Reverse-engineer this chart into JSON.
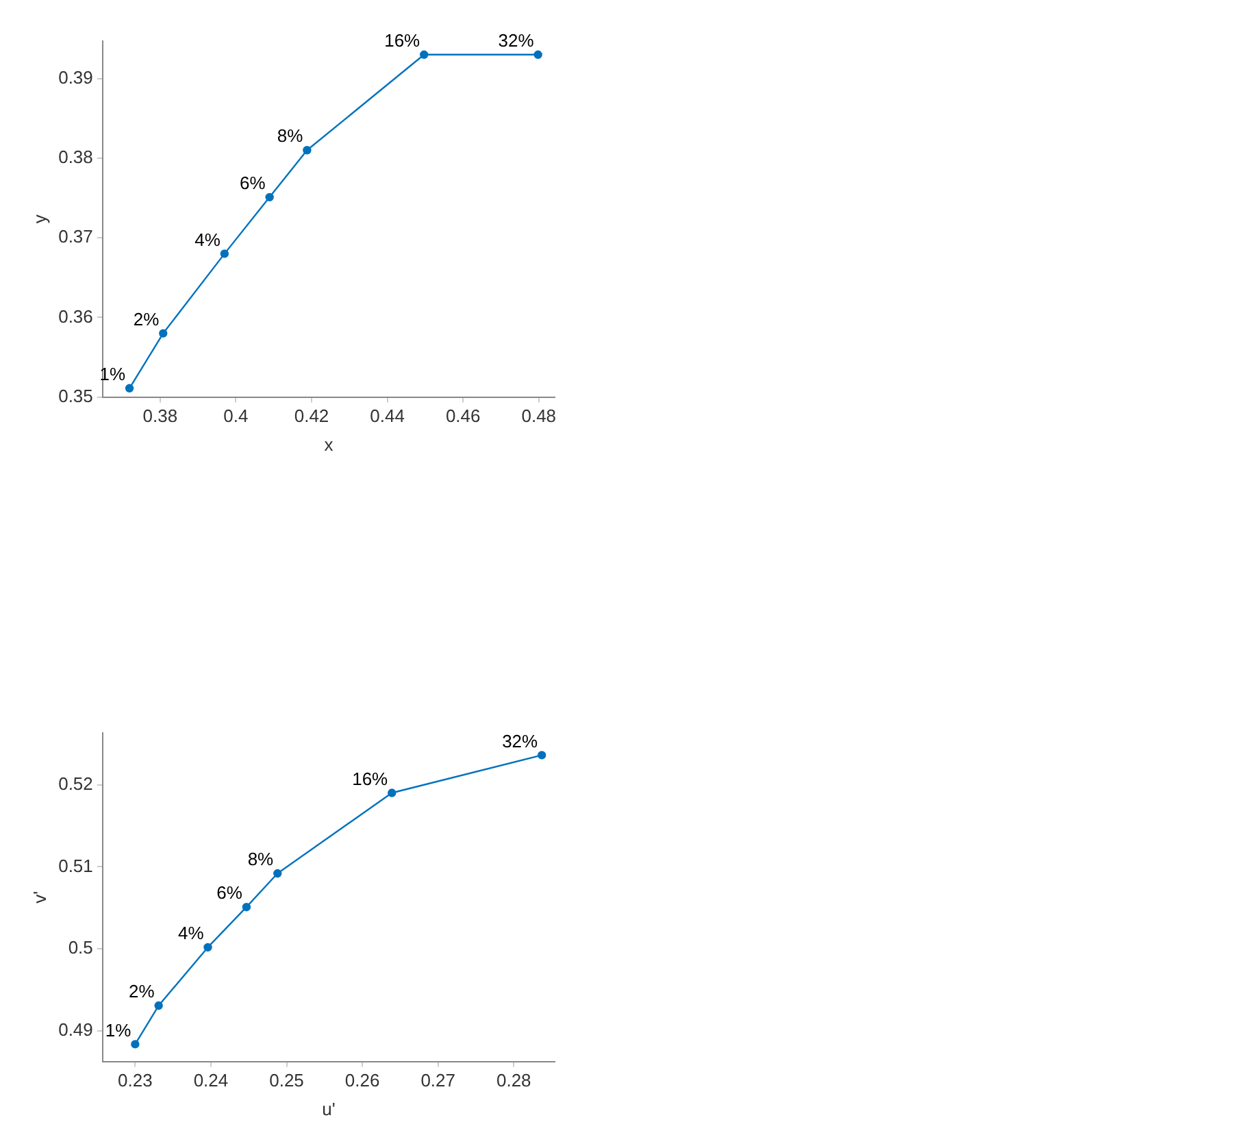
{
  "chart_data": [
    {
      "type": "line",
      "xlabel": "x",
      "ylabel": "y",
      "x": [
        0.3719,
        0.3808,
        0.397,
        0.4089,
        0.4188,
        0.4497,
        0.4798
      ],
      "series": [
        {
          "color": "#0072bd",
          "values": [
            0.3511,
            0.358,
            0.368,
            0.3751,
            0.381,
            0.393,
            0.393
          ]
        }
      ],
      "xlim": [
        0.3648,
        0.4842
      ],
      "xticks": [
        0.38,
        0.4,
        0.42,
        0.44,
        0.46,
        0.48
      ],
      "ylim": [
        0.35,
        0.3947
      ],
      "yticks": [
        0.35,
        0.36,
        0.37,
        0.38,
        0.39
      ],
      "marker": "circle",
      "line_style": "solid",
      "grid": false,
      "legend": false,
      "annotations": [
        {
          "text": "1%",
          "x": 0.3719,
          "y": 0.3511
        },
        {
          "text": "2%",
          "x": 0.3808,
          "y": 0.358
        },
        {
          "text": "4%",
          "x": 0.397,
          "y": 0.368
        },
        {
          "text": "6%",
          "x": 0.4089,
          "y": 0.3751
        },
        {
          "text": "8%",
          "x": 0.4188,
          "y": 0.381
        },
        {
          "text": "16%",
          "x": 0.4497,
          "y": 0.393
        },
        {
          "text": "32%",
          "x": 0.4798,
          "y": 0.393
        }
      ]
    },
    {
      "type": "line",
      "xlabel": "u'",
      "ylabel": "v'",
      "x": [
        0.23,
        0.2331,
        0.2396,
        0.2447,
        0.2488,
        0.2639,
        0.2837
      ],
      "series": [
        {
          "color": "#0072bd",
          "values": [
            0.4884,
            0.4931,
            0.5002,
            0.5051,
            0.5092,
            0.519,
            0.5236
          ]
        }
      ],
      "xlim": [
        0.2257,
        0.2854
      ],
      "xticks": [
        0.23,
        0.24,
        0.25,
        0.26,
        0.27,
        0.28
      ],
      "ylim": [
        0.4863,
        0.5263
      ],
      "yticks": [
        0.49,
        0.5,
        0.51,
        0.52
      ],
      "marker": "circle",
      "line_style": "solid",
      "grid": false,
      "legend": false,
      "annotations": [
        {
          "text": "1%",
          "x": 0.23,
          "y": 0.4884
        },
        {
          "text": "2%",
          "x": 0.2331,
          "y": 0.4931
        },
        {
          "text": "4%",
          "x": 0.2396,
          "y": 0.5002
        },
        {
          "text": "6%",
          "x": 0.2447,
          "y": 0.5051
        },
        {
          "text": "8%",
          "x": 0.2488,
          "y": 0.5092
        },
        {
          "text": "16%",
          "x": 0.2639,
          "y": 0.519
        },
        {
          "text": "32%",
          "x": 0.2837,
          "y": 0.5236
        }
      ]
    }
  ]
}
